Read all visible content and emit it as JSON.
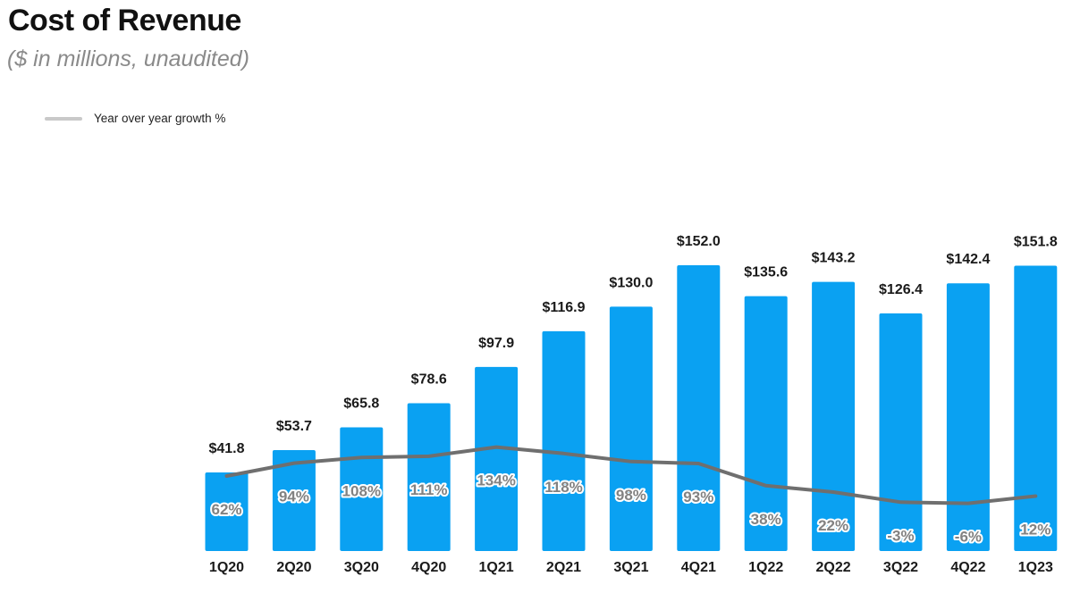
{
  "header": {
    "title": "Cost of Revenue",
    "subtitle": "($ in millions, unaudited)"
  },
  "colors": {
    "bar": "#0aa1f2",
    "line": "#6f6f6f",
    "legend_swatch": "#c9c9c9",
    "value_label": "#1a1a1a",
    "pct_label": "#828282",
    "pct_label_outline": "#ffffff",
    "axis_label": "#1a1a1a",
    "title": "#111111",
    "subtitle": "#8a8a8a",
    "background": "#ffffff"
  },
  "chart_data": {
    "type": "bar",
    "title": "Cost of Revenue",
    "subtitle": "($ in millions, unaudited)",
    "xlabel": "",
    "ylabel": "",
    "grid": false,
    "y_axis_visible": false,
    "legend_position": "top-left",
    "legend": [
      "Year over year growth %"
    ],
    "categories": [
      "1Q20",
      "2Q20",
      "3Q20",
      "4Q20",
      "1Q21",
      "2Q21",
      "3Q21",
      "4Q21",
      "1Q22",
      "2Q22",
      "3Q22",
      "4Q22",
      "1Q23"
    ],
    "series": [
      {
        "name": "Cost of Revenue",
        "type": "bar",
        "unit": "$ millions",
        "values": [
          41.8,
          53.7,
          65.8,
          78.6,
          97.9,
          116.9,
          130.0,
          152.0,
          135.6,
          143.2,
          126.4,
          142.4,
          151.8
        ],
        "labels": [
          "$41.8",
          "$53.7",
          "$65.8",
          "$78.6",
          "$97.9",
          "$116.9",
          "$130.0",
          "$152.0",
          "$135.6",
          "$143.2",
          "$126.4",
          "$142.4",
          "$151.8"
        ]
      },
      {
        "name": "Year over year growth %",
        "type": "line",
        "unit": "%",
        "values": [
          62,
          94,
          108,
          111,
          134,
          118,
          98,
          93,
          38,
          22,
          -3,
          -6,
          12
        ],
        "labels": [
          "62%",
          "94%",
          "108%",
          "111%",
          "134%",
          "118%",
          "98%",
          "93%",
          "38%",
          "22%",
          "-3%",
          "-6%",
          "12%"
        ]
      }
    ]
  }
}
